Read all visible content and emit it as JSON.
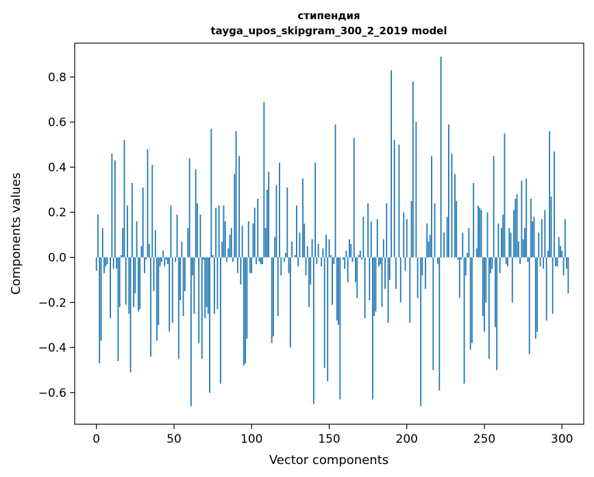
{
  "chart_data": {
    "type": "bar",
    "title": "стипендия",
    "subtitle": "tayga_upos_skipgram_300_2_2019 model",
    "xlabel": "Vector components",
    "ylabel": "Components values",
    "xlim": [
      -14,
      314
    ],
    "ylim": [
      -0.74,
      0.95
    ],
    "xticks": [
      0,
      50,
      100,
      150,
      200,
      250,
      300
    ],
    "yticks": [
      -0.6,
      -0.4,
      -0.2,
      0.0,
      0.2,
      0.4,
      0.6,
      0.8
    ],
    "ytick_labels": [
      "−0.6",
      "−0.4",
      "−0.2",
      "0.0",
      "0.2",
      "0.4",
      "0.6",
      "0.8"
    ],
    "grid": false,
    "bar_color": "#1f77b4",
    "series": [
      {
        "values": [
          -0.06,
          0.19,
          -0.47,
          -0.37,
          0.13,
          -0.07,
          -0.04,
          -0.03,
          0.0,
          -0.27,
          0.46,
          -0.05,
          0.43,
          -0.05,
          -0.46,
          -0.22,
          0.01,
          0.13,
          0.52,
          -0.21,
          0.23,
          -0.25,
          -0.51,
          0.33,
          -0.22,
          -0.16,
          0.16,
          -0.24,
          -0.23,
          0.05,
          0.31,
          -0.07,
          -0.01,
          0.48,
          0.06,
          -0.44,
          0.41,
          -0.15,
          0.12,
          -0.37,
          -0.3,
          -0.04,
          -0.02,
          0.03,
          -0.04,
          -0.01,
          -0.03,
          -0.33,
          0.23,
          -0.29,
          0.0,
          -0.02,
          0.19,
          -0.45,
          -0.19,
          0.07,
          -0.26,
          -0.15,
          0.0,
          0.13,
          0.44,
          -0.66,
          -0.08,
          -0.25,
          0.39,
          0.24,
          -0.38,
          0.19,
          -0.45,
          -0.01,
          -0.27,
          -0.22,
          -0.25,
          -0.6,
          0.57,
          0.01,
          -0.25,
          0.22,
          -0.23,
          0.23,
          -0.56,
          0.07,
          0.23,
          0.16,
          -0.02,
          0.04,
          0.1,
          0.13,
          -0.02,
          0.37,
          0.56,
          -0.07,
          0.45,
          -0.12,
          0.14,
          -0.48,
          -0.47,
          -0.36,
          0.16,
          -0.07,
          -0.07,
          0.15,
          0.22,
          -0.03,
          0.26,
          -0.02,
          -0.03,
          -0.03,
          0.69,
          0.13,
          0.3,
          0.38,
          0.0,
          -0.38,
          -0.35,
          0.09,
          0.32,
          -0.26,
          0.42,
          -0.08,
          0.0,
          -0.02,
          0.02,
          0.31,
          -0.07,
          -0.4,
          0.07,
          0.0,
          0.01,
          0.23,
          -0.04,
          0.11,
          0.0,
          0.35,
          0.15,
          -0.08,
          0.05,
          -0.22,
          -0.12,
          0.08,
          -0.65,
          0.42,
          -0.03,
          0.06,
          0.0,
          -0.04,
          0.04,
          -0.49,
          0.1,
          -0.55,
          0.08,
          0.01,
          -0.21,
          -0.03,
          0.59,
          -0.28,
          -0.3,
          -0.63,
          0.0,
          -0.01,
          -0.05,
          0.03,
          -0.11,
          0.08,
          0.06,
          -0.02,
          0.53,
          -0.11,
          -0.18,
          0.01,
          0.03,
          -0.01,
          0.18,
          -0.27,
          0.0,
          0.24,
          -0.19,
          0.16,
          -0.63,
          -0.26,
          -0.24,
          0.17,
          -0.04,
          -0.03,
          -0.22,
          0.08,
          -0.14,
          0.24,
          -0.29,
          -0.1,
          0.83,
          0.0,
          0.52,
          -0.14,
          0.0,
          0.5,
          -0.2,
          0.0,
          0.2,
          -0.06,
          0.17,
          0.0,
          -0.29,
          0.25,
          0.78,
          0.0,
          0.6,
          -0.18,
          0.0,
          -0.66,
          -0.08,
          0.0,
          -0.14,
          0.15,
          0.07,
          0.1,
          0.45,
          -0.5,
          0.24,
          0.0,
          -0.03,
          -0.59,
          0.89,
          0.0,
          0.11,
          0.0,
          0.18,
          0.59,
          0.0,
          0.46,
          0.0,
          0.37,
          0.25,
          -0.01,
          -0.18,
          -0.01,
          0.11,
          -0.56,
          -0.08,
          0.02,
          0.13,
          -0.41,
          -0.38,
          0.33,
          0.0,
          0.04,
          0.23,
          0.22,
          0.21,
          -0.26,
          -0.33,
          -0.2,
          0.2,
          -0.45,
          -0.07,
          -0.05,
          0.45,
          -0.31,
          -0.5,
          0.15,
          -0.07,
          0.13,
          0.19,
          0.55,
          -0.03,
          -0.04,
          0.13,
          0.11,
          -0.2,
          0.21,
          0.26,
          0.28,
          0.07,
          -0.03,
          0.34,
          0.08,
          0.13,
          0.35,
          -0.02,
          -0.43,
          0.26,
          0.16,
          0.18,
          -0.36,
          -0.33,
          0.11,
          -0.04,
          0.17,
          -0.05,
          0.21,
          -0.28,
          0.03,
          0.56,
          0.27,
          -0.25,
          0.47,
          -0.04,
          -0.04,
          0.09,
          0.05,
          0.03,
          -0.08,
          0.17,
          -0.05,
          -0.16
        ]
      }
    ]
  }
}
